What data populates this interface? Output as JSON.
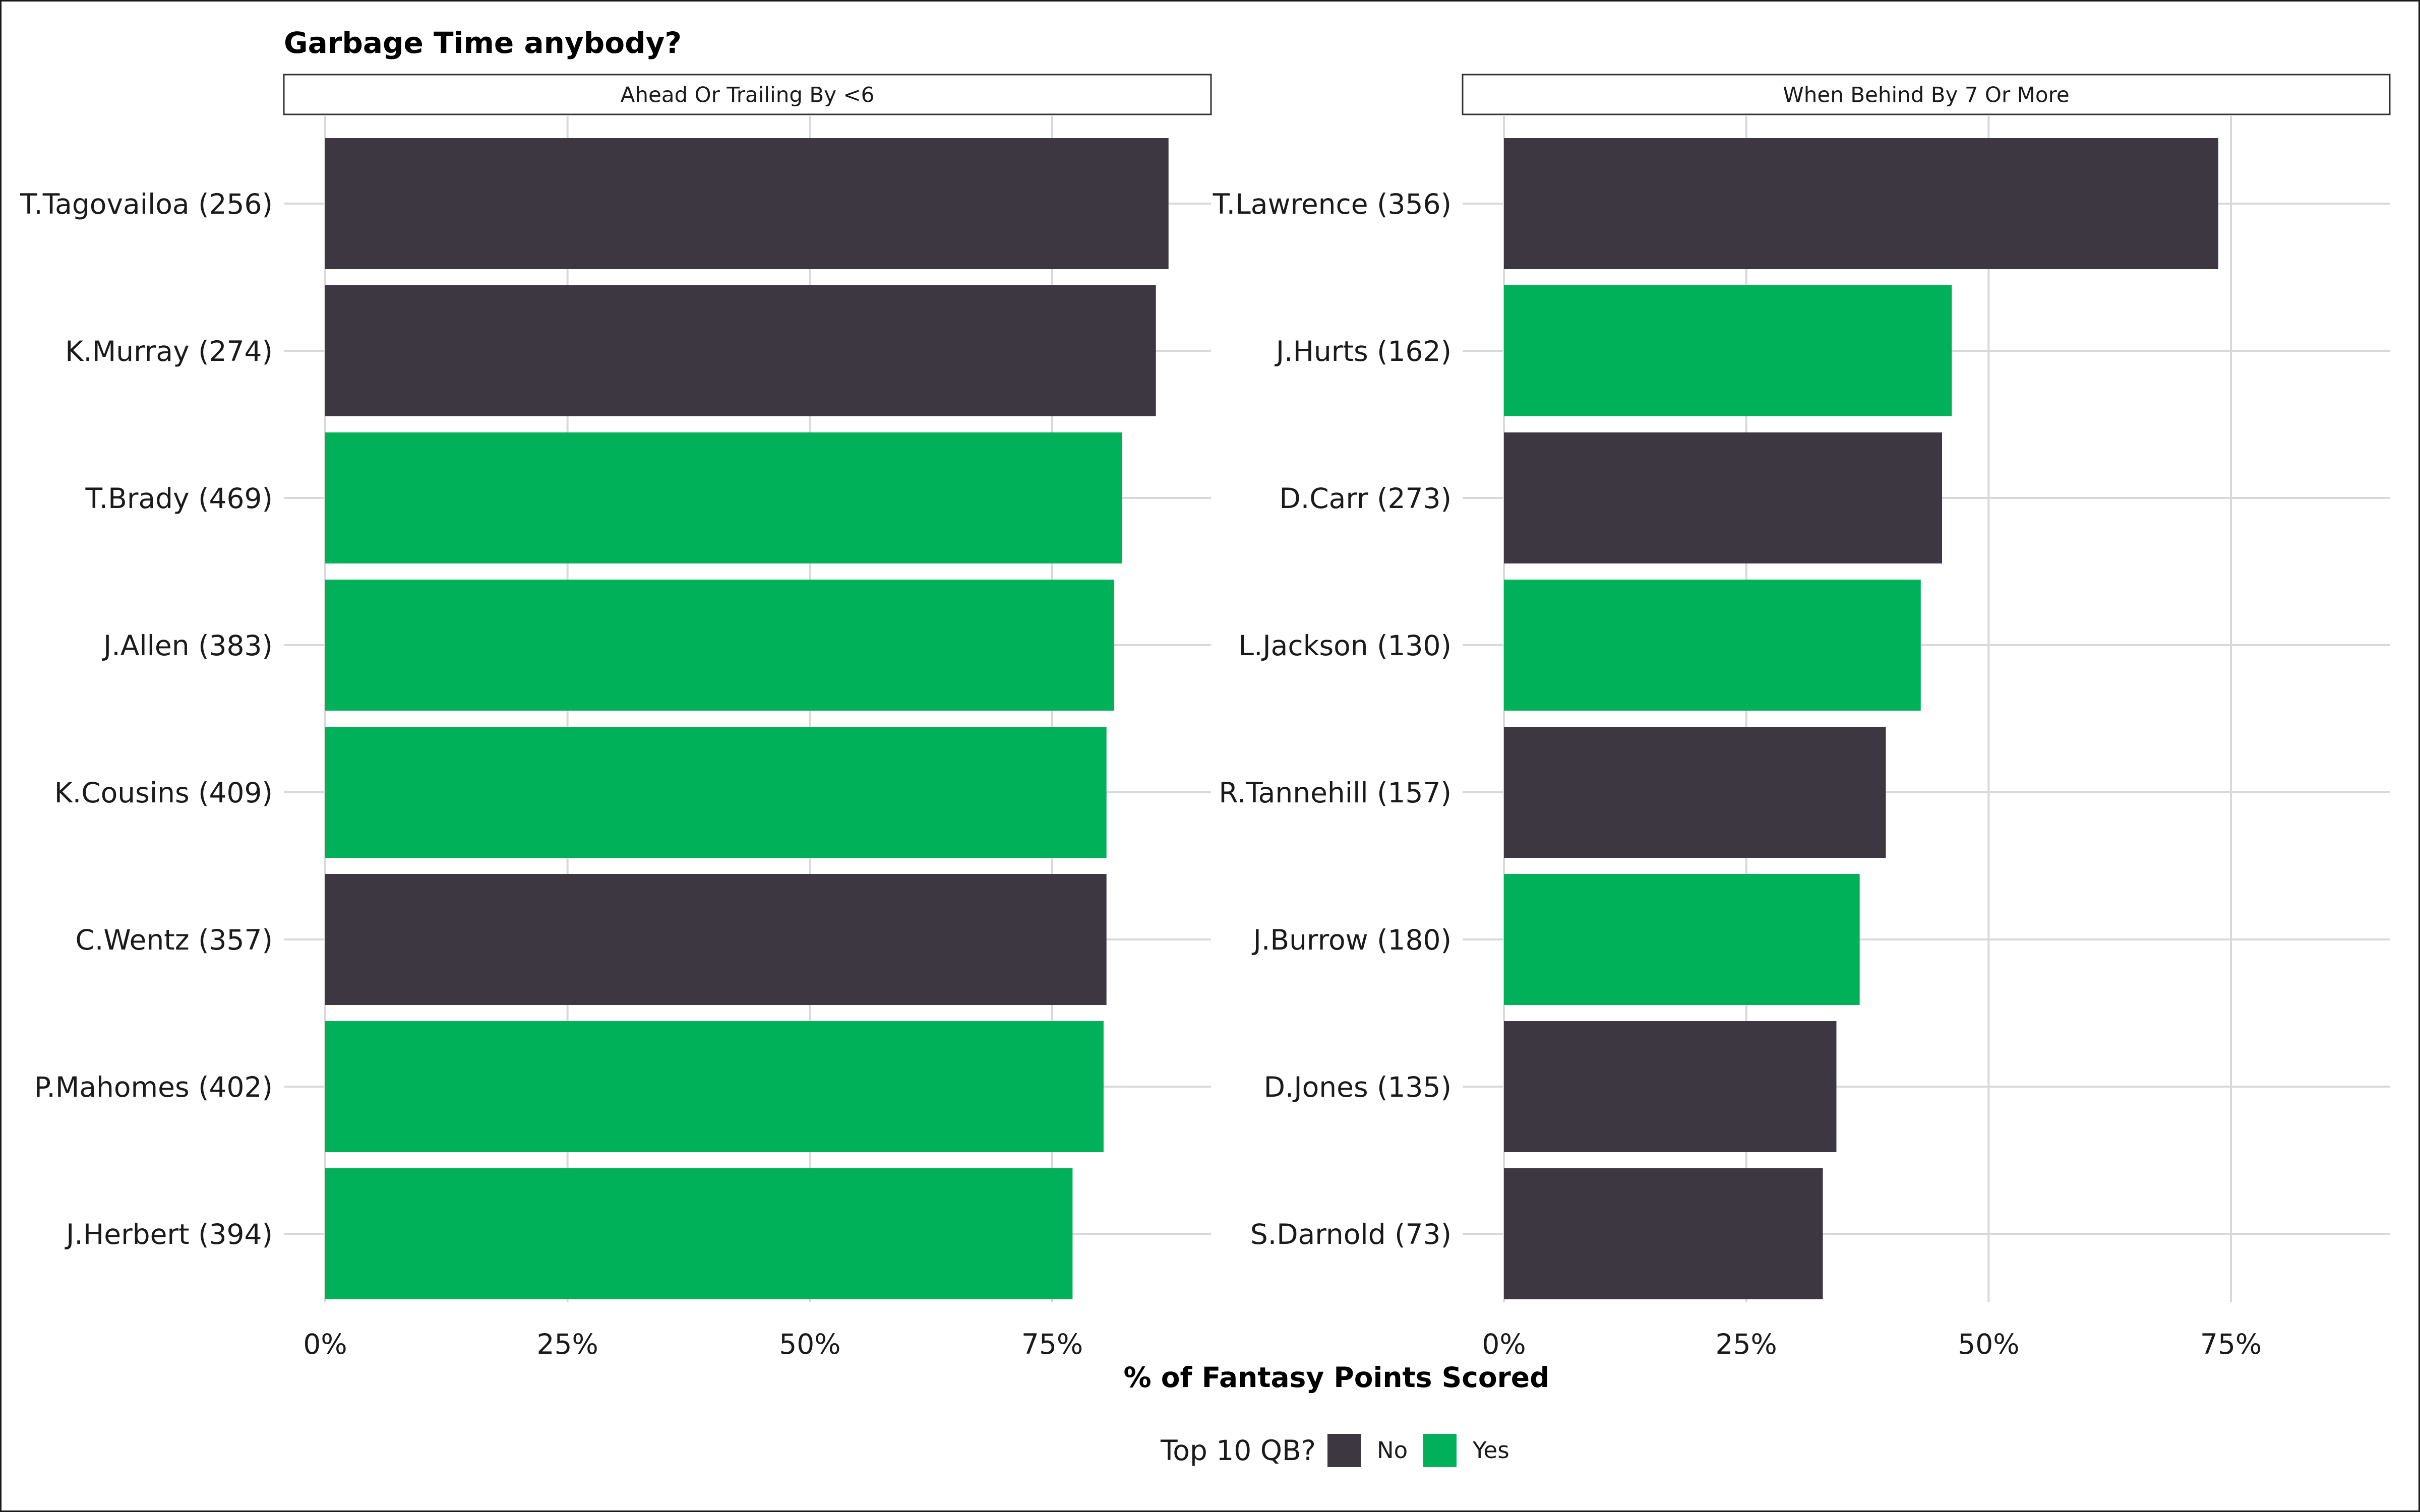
{
  "chart_data": {
    "type": "bar",
    "orientation": "horizontal",
    "title": "Garbage Time anybody?",
    "xlabel": "% of Fantasy Points Scored",
    "xlim": [
      0,
      0.915
    ],
    "x_ticks": [
      "0%",
      "25%",
      "50%",
      "75%"
    ],
    "x_tick_values": [
      0,
      0.25,
      0.5,
      0.75
    ],
    "grid": true,
    "legend": {
      "title": "Top 10 QB?",
      "position": "bottom",
      "entries": [
        {
          "key": "No",
          "label": "No",
          "color": "#3d3742"
        },
        {
          "key": "Yes",
          "label": "Yes",
          "color": "#00b15a"
        }
      ]
    },
    "panels": [
      {
        "strip": "Ahead Or Trailing By <6",
        "categories": [
          "T.Tagovailoa (256)",
          "K.Murray (274)",
          "T.Brady (469)",
          "J.Allen (383)",
          "K.Cousins (409)",
          "C.Wentz (357)",
          "P.Mahomes (402)",
          "J.Herbert (394)"
        ],
        "values": [
          0.87,
          0.857,
          0.822,
          0.814,
          0.806,
          0.806,
          0.803,
          0.771
        ],
        "top10": [
          "No",
          "No",
          "Yes",
          "Yes",
          "Yes",
          "No",
          "Yes",
          "Yes"
        ]
      },
      {
        "strip": "When Behind By 7 Or More",
        "categories": [
          "T.Lawrence (356)",
          "J.Hurts (162)",
          "D.Carr (273)",
          "L.Jackson (130)",
          "R.Tannehill (157)",
          "J.Burrow (180)",
          "D.Jones (135)",
          "S.Darnold (73)"
        ],
        "values": [
          0.737,
          0.462,
          0.452,
          0.43,
          0.394,
          0.367,
          0.343,
          0.329
        ],
        "top10": [
          "No",
          "Yes",
          "No",
          "Yes",
          "No",
          "Yes",
          "No",
          "No"
        ]
      }
    ]
  }
}
